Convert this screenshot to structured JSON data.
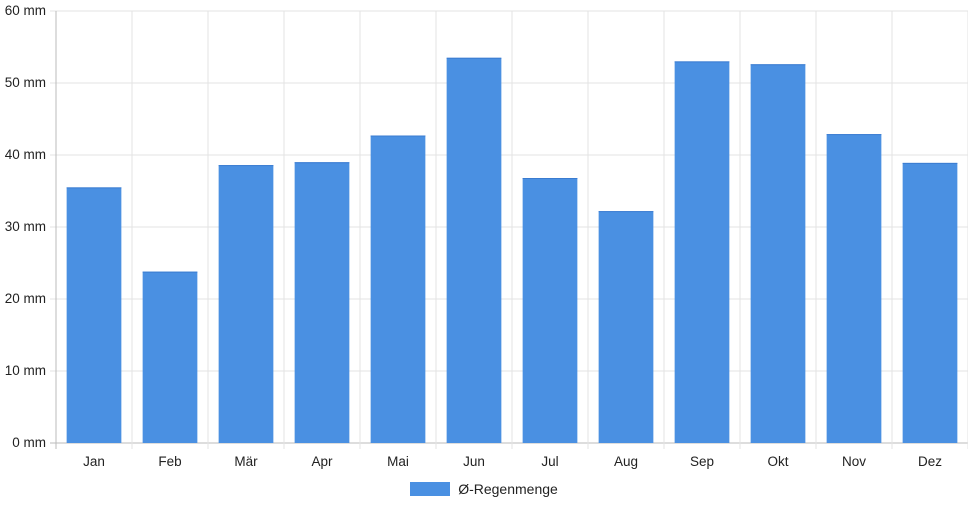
{
  "chart_data": {
    "type": "bar",
    "categories": [
      "Jan",
      "Feb",
      "Mär",
      "Apr",
      "Mai",
      "Jun",
      "Jul",
      "Aug",
      "Sep",
      "Okt",
      "Nov",
      "Dez"
    ],
    "series": [
      {
        "name": "Ø-Regenmenge",
        "values": [
          35.5,
          23.8,
          38.6,
          39.0,
          42.7,
          53.5,
          36.8,
          32.2,
          53.0,
          52.6,
          42.9,
          38.9
        ],
        "color": "#4a90e2"
      }
    ],
    "y_ticks": [
      "0 mm",
      "10 mm",
      "20 mm",
      "30 mm",
      "40 mm",
      "50 mm",
      "60 mm"
    ],
    "ylim": [
      0,
      60
    ],
    "ylabel": "",
    "xlabel": "",
    "title": "",
    "grid": true,
    "legend_position": "bottom"
  },
  "legend": {
    "label": "Ø-Regenmenge",
    "color": "#4a90e2"
  }
}
